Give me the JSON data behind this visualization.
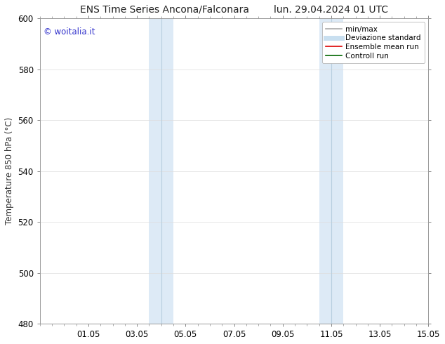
{
  "title": "ENS Time Series Ancona/Falconara        lun. 29.04.2024 01 UTC",
  "title_left": "ENS Time Series Ancona/Falconara",
  "title_right": "lun. 29.04.2024 01 UTC",
  "ylabel": "Temperature 850 hPa (°C)",
  "ylim": [
    480,
    600
  ],
  "yticks": [
    480,
    500,
    520,
    540,
    560,
    580,
    600
  ],
  "xtick_labels": [
    "01.05",
    "03.05",
    "05.05",
    "07.05",
    "09.05",
    "11.05",
    "13.05",
    "15.05"
  ],
  "xtick_positions": [
    2,
    4,
    6,
    8,
    10,
    12,
    14,
    16
  ],
  "xlim": [
    0,
    16
  ],
  "shaded_bands": [
    {
      "xmin": 4.5,
      "xmax": 5.0,
      "color": "#ddeaf6"
    },
    {
      "xmin": 5.0,
      "xmax": 5.5,
      "color": "#ccddf0"
    },
    {
      "xmin": 11.5,
      "xmax": 12.0,
      "color": "#ddeaf6"
    },
    {
      "xmin": 12.0,
      "xmax": 12.5,
      "color": "#ccddf0"
    }
  ],
  "shaded_outer": [
    {
      "xmin": 4.5,
      "xmax": 5.5,
      "color": "#ddeaf6"
    },
    {
      "xmin": 11.5,
      "xmax": 12.5,
      "color": "#ddeaf6"
    }
  ],
  "watermark_text": "© woitalia.it",
  "watermark_color": "#3333cc",
  "legend_items": [
    {
      "label": "min/max",
      "color": "#aaaaaa",
      "lw": 1.2
    },
    {
      "label": "Deviazione standard",
      "color": "#c8dff0",
      "lw": 5
    },
    {
      "label": "Ensemble mean run",
      "color": "#dd0000",
      "lw": 1.2
    },
    {
      "label": "Controll run",
      "color": "#006600",
      "lw": 1.2
    }
  ],
  "bg_color": "#ffffff",
  "grid_color": "#dddddd",
  "tick_label_fontsize": 8.5,
  "axis_label_fontsize": 8.5,
  "title_fontsize": 10
}
